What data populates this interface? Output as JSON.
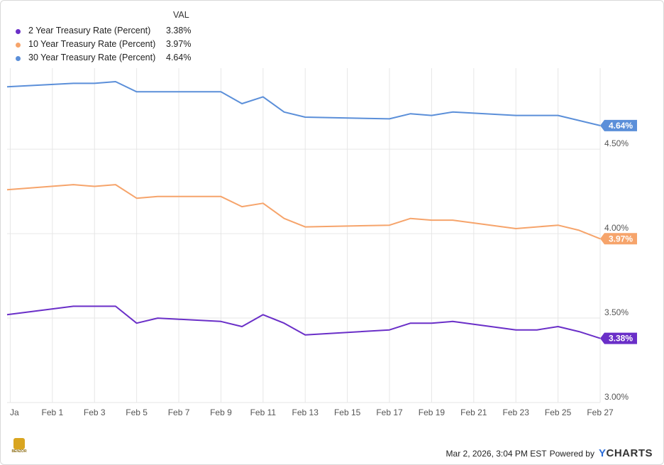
{
  "legend": {
    "header": "VAL",
    "items": [
      {
        "name": "2 Year Treasury Rate (Percent)",
        "value": "3.38%",
        "color": "#6a2fc8"
      },
      {
        "name": "10 Year Treasury Rate (Percent)",
        "value": "3.97%",
        "color": "#f6a46b"
      },
      {
        "name": "30 Year Treasury Rate (Percent)",
        "value": "4.64%",
        "color": "#5b8fd9"
      }
    ]
  },
  "footer": {
    "timestamp": "Mar 2, 2026, 3:04 PM EST",
    "powered_by": "Powered by",
    "brand_y": "Y",
    "brand_rest": "CHARTS"
  },
  "logo": {
    "text": "BENZOR"
  },
  "chart_data": {
    "type": "line",
    "title": "",
    "xlabel": "",
    "ylabel": "",
    "ylim": [
      3.0,
      4.98
    ],
    "y_ticks": [
      3.0,
      3.5,
      4.0,
      4.5
    ],
    "y_tick_labels": [
      "3.00%",
      "3.50%",
      "4.00%",
      "4.50%"
    ],
    "x_tick_labels": [
      "Ja",
      "Feb 1",
      "Feb 3",
      "Feb 5",
      "Feb 7",
      "Feb 9",
      "Feb 11",
      "Feb 13",
      "Feb 15",
      "Feb 17",
      "Feb 19",
      "Feb 21",
      "Feb 23",
      "Feb 25",
      "Feb 27"
    ],
    "x_tick_positions": [
      -1,
      1,
      3,
      5,
      7,
      9,
      11,
      13,
      15,
      17,
      19,
      21,
      23,
      25,
      27
    ],
    "x_range": [
      -1.15,
      27
    ],
    "grid": true,
    "series": [
      {
        "name": "30 Year Treasury Rate (Percent)",
        "color": "#5b8fd9",
        "end_label": "4.64%",
        "x": [
          -1.15,
          2,
          3,
          4,
          5,
          6,
          9,
          10,
          11,
          12,
          13,
          17,
          18,
          19,
          20,
          23,
          25,
          27
        ],
        "values": [
          4.87,
          4.89,
          4.89,
          4.9,
          4.84,
          4.84,
          4.84,
          4.77,
          4.81,
          4.72,
          4.69,
          4.68,
          4.71,
          4.7,
          4.72,
          4.7,
          4.7,
          4.64
        ]
      },
      {
        "name": "10 Year Treasury Rate (Percent)",
        "color": "#f6a46b",
        "end_label": "3.97%",
        "x": [
          -1.15,
          2,
          3,
          4,
          5,
          6,
          9,
          10,
          11,
          12,
          13,
          17,
          18,
          19,
          20,
          23,
          25,
          26,
          27
        ],
        "values": [
          4.26,
          4.29,
          4.28,
          4.29,
          4.21,
          4.22,
          4.22,
          4.16,
          4.18,
          4.09,
          4.04,
          4.05,
          4.09,
          4.08,
          4.08,
          4.03,
          4.05,
          4.02,
          3.97
        ]
      },
      {
        "name": "2 Year Treasury Rate (Percent)",
        "color": "#6a2fc8",
        "end_label": "3.38%",
        "x": [
          -1.15,
          2,
          3,
          4,
          5,
          6,
          9,
          10,
          11,
          12,
          13,
          17,
          18,
          19,
          20,
          23,
          24,
          25,
          26,
          27
        ],
        "values": [
          3.52,
          3.57,
          3.57,
          3.57,
          3.47,
          3.5,
          3.48,
          3.45,
          3.52,
          3.47,
          3.4,
          3.43,
          3.47,
          3.47,
          3.48,
          3.43,
          3.43,
          3.45,
          3.42,
          3.38
        ]
      }
    ]
  }
}
